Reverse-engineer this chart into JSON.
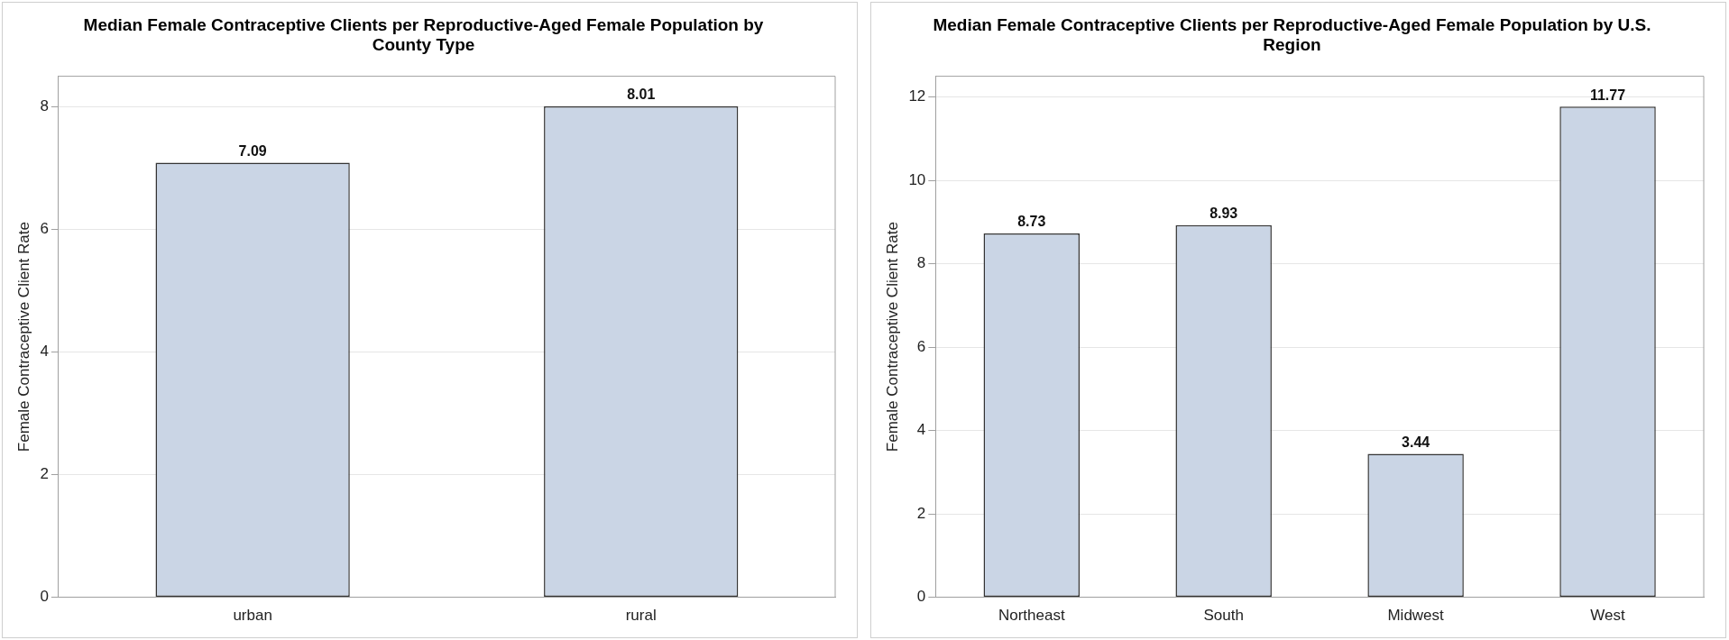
{
  "chart_data": [
    {
      "type": "bar",
      "title": "Median Female Contraceptive Clients per Reproductive-Aged Female Population by County Type",
      "ylabel": "Female Contraceptive Client Rate",
      "categories": [
        "urban",
        "rural"
      ],
      "values": [
        7.09,
        8.01
      ],
      "color": "#cad5e5",
      "ylim": [
        0,
        8.5
      ],
      "yticks": [
        0,
        2,
        4,
        6,
        8
      ],
      "grid": "y",
      "legend": false,
      "data_labels": true
    },
    {
      "type": "bar",
      "title": "Median Female Contraceptive Clients per Reproductive-Aged Female Population by U.S. Region",
      "ylabel": "Female Contraceptive Client Rate",
      "categories": [
        "Northeast",
        "South",
        "Midwest",
        "West"
      ],
      "values": [
        8.73,
        8.93,
        3.44,
        11.77
      ],
      "color": "#cad5e5",
      "ylim": [
        0,
        12.5
      ],
      "yticks": [
        0,
        2,
        4,
        6,
        8,
        10,
        12
      ],
      "grid": "y",
      "legend": false,
      "data_labels": true
    }
  ]
}
